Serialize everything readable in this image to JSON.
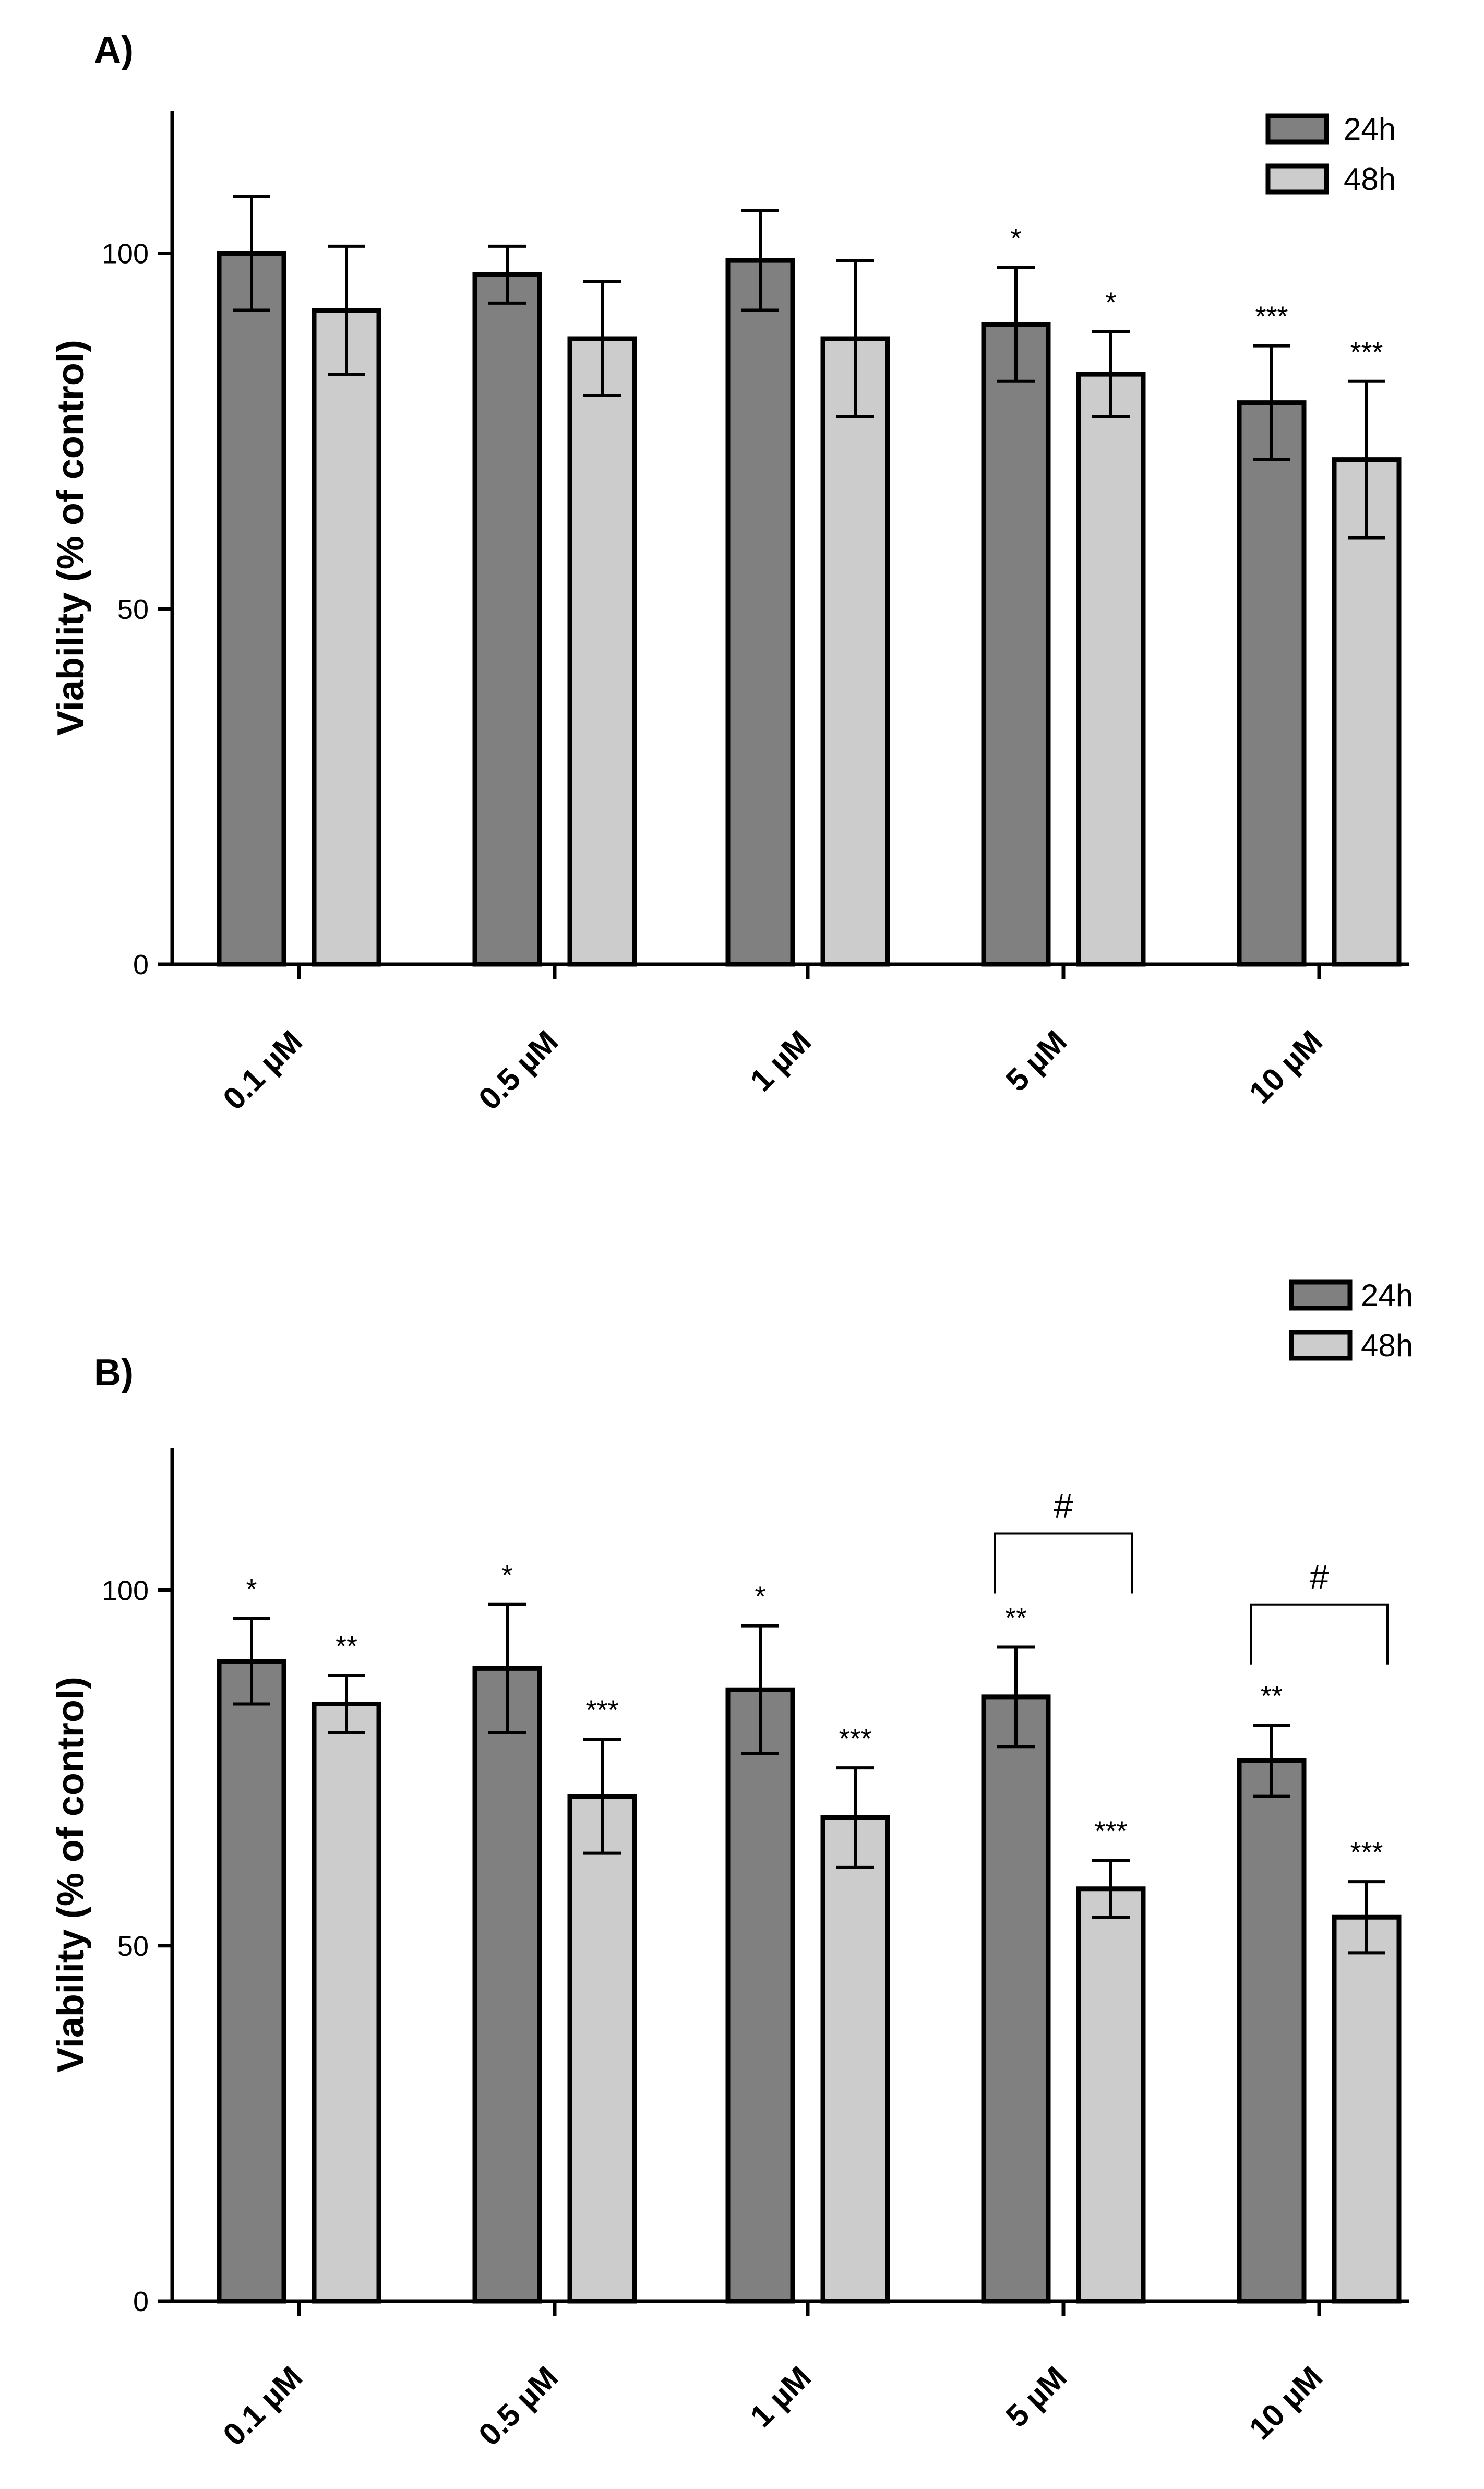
{
  "chart_data": [
    {
      "panel": "A)",
      "type": "bar",
      "categories": [
        "0.1 µM",
        "0.5 µM",
        "1 µM",
        "5 µM",
        "10 µM"
      ],
      "ylabel": "Viability (% of control)",
      "xlabel": "",
      "ylim": [
        0,
        120
      ],
      "yticks": [
        0,
        50,
        100
      ],
      "legend": [
        "24h",
        "48h"
      ],
      "legend_position": "top-right",
      "colors": {
        "24h": "#808080",
        "48h": "#cccccc"
      },
      "series": [
        {
          "name": "24h",
          "values": [
            100,
            97,
            99,
            90,
            79
          ],
          "errors": [
            8,
            4,
            7,
            8,
            8
          ],
          "significance": [
            "",
            "",
            "",
            "*",
            "***"
          ]
        },
        {
          "name": "48h",
          "values": [
            92,
            88,
            88,
            83,
            71
          ],
          "errors": [
            9,
            8,
            11,
            6,
            11
          ],
          "significance": [
            "",
            "",
            "",
            "*",
            "***"
          ]
        }
      ],
      "brackets": []
    },
    {
      "panel": "B)",
      "type": "bar",
      "categories": [
        "0.1 µM",
        "0.5 µM",
        "1 µM",
        "5 µM",
        "10 µM"
      ],
      "ylabel": "Viability (% of control)",
      "xlabel": "",
      "ylim": [
        0,
        120
      ],
      "yticks": [
        0,
        50,
        100
      ],
      "legend": [
        "24h",
        "48h"
      ],
      "legend_position": "top-right",
      "colors": {
        "24h": "#808080",
        "48h": "#cccccc"
      },
      "series": [
        {
          "name": "24h",
          "values": [
            90,
            89,
            86,
            85,
            76
          ],
          "errors": [
            6,
            9,
            9,
            7,
            5
          ],
          "significance": [
            "*",
            "*",
            "*",
            "**",
            "**"
          ]
        },
        {
          "name": "48h",
          "values": [
            84,
            71,
            68,
            58,
            54
          ],
          "errors": [
            4,
            8,
            7,
            4,
            5
          ],
          "significance": [
            "**",
            "***",
            "***",
            "***",
            "***"
          ]
        }
      ],
      "brackets": [
        {
          "category_index": 3,
          "label": "#",
          "y_value": 108
        },
        {
          "category_index": 4,
          "label": "#",
          "y_value": 98
        }
      ]
    }
  ]
}
